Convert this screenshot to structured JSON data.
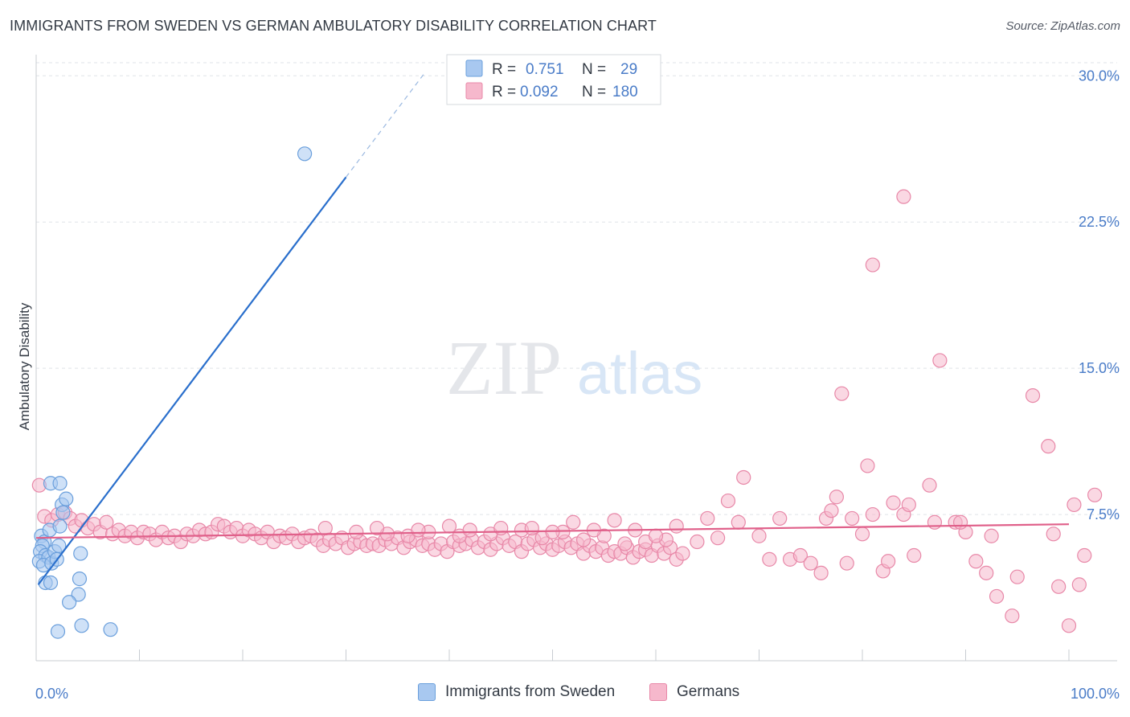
{
  "header": {
    "title": "IMMIGRANTS FROM SWEDEN VS GERMAN AMBULATORY DISABILITY CORRELATION CHART",
    "source": "Source: ZipAtlas.com"
  },
  "watermark": {
    "zip": "ZIP",
    "atlas": "atlas"
  },
  "colors": {
    "blue_fill": "#a8c8f0",
    "blue_stroke": "#6a9fdc",
    "blue_line": "#2a6fcc",
    "pink_fill": "#f6b8cc",
    "pink_stroke": "#e888a8",
    "pink_line": "#e0608a",
    "tick_label": "#4a7cc8",
    "grid": "#dfe3e8"
  },
  "chart_data": {
    "type": "scatter",
    "title": "IMMIGRANTS FROM SWEDEN VS GERMAN AMBULATORY DISABILITY CORRELATION CHART",
    "xlabel": "",
    "ylabel": "Ambulatory Disability",
    "xlim": [
      0,
      100
    ],
    "ylim": [
      0,
      31
    ],
    "x_tick_labels": [
      "0.0%",
      "100.0%"
    ],
    "y_ticks": [
      7.5,
      15.0,
      22.5,
      30.0
    ],
    "y_tick_labels": [
      "7.5%",
      "15.0%",
      "22.5%",
      "30.0%"
    ],
    "grid": true,
    "legend_position": "top-center",
    "series": [
      {
        "name": "Immigrants from Sweden",
        "color": "blue",
        "R": "0.751",
        "N": "29",
        "trend": {
          "x0": 0.2,
          "y0": 3.9,
          "x1": 30,
          "y1": 24.8,
          "dash_to_x": 37.5
        },
        "points": [
          [
            26.0,
            26.0
          ],
          [
            0.5,
            6.4
          ],
          [
            0.8,
            6.1
          ],
          [
            0.6,
            5.9
          ],
          [
            0.4,
            5.6
          ],
          [
            0.9,
            5.4
          ],
          [
            0.3,
            5.1
          ],
          [
            1.2,
            5.3
          ],
          [
            0.7,
            4.9
          ],
          [
            1.5,
            5.0
          ],
          [
            1.8,
            5.6
          ],
          [
            2.0,
            5.2
          ],
          [
            1.3,
            6.7
          ],
          [
            2.3,
            6.9
          ],
          [
            2.2,
            5.9
          ],
          [
            1.4,
            9.1
          ],
          [
            2.3,
            9.1
          ],
          [
            2.5,
            8.0
          ],
          [
            2.9,
            8.3
          ],
          [
            2.6,
            7.6
          ],
          [
            0.9,
            4.0
          ],
          [
            1.4,
            4.0
          ],
          [
            4.3,
            5.5
          ],
          [
            4.2,
            4.2
          ],
          [
            4.1,
            3.4
          ],
          [
            3.2,
            3.0
          ],
          [
            2.1,
            1.5
          ],
          [
            4.4,
            1.8
          ],
          [
            7.2,
            1.6
          ]
        ]
      },
      {
        "name": "Germans",
        "color": "pink",
        "R": "0.092",
        "N": "180",
        "trend": {
          "x0": 0,
          "y0": 6.3,
          "x1": 100,
          "y1": 7.0
        },
        "points": [
          [
            0.3,
            9.0
          ],
          [
            0.8,
            7.4
          ],
          [
            1.5,
            7.2
          ],
          [
            2.1,
            7.5
          ],
          [
            2.8,
            7.6
          ],
          [
            3.3,
            7.3
          ],
          [
            3.8,
            6.9
          ],
          [
            4.4,
            7.2
          ],
          [
            5.0,
            6.8
          ],
          [
            5.6,
            7.0
          ],
          [
            6.2,
            6.6
          ],
          [
            6.8,
            7.1
          ],
          [
            7.4,
            6.5
          ],
          [
            8.0,
            6.7
          ],
          [
            8.6,
            6.4
          ],
          [
            9.2,
            6.6
          ],
          [
            9.8,
            6.3
          ],
          [
            10.4,
            6.6
          ],
          [
            11.0,
            6.5
          ],
          [
            11.6,
            6.2
          ],
          [
            12.2,
            6.6
          ],
          [
            12.8,
            6.3
          ],
          [
            13.4,
            6.4
          ],
          [
            14.0,
            6.1
          ],
          [
            14.6,
            6.5
          ],
          [
            15.2,
            6.4
          ],
          [
            15.8,
            6.7
          ],
          [
            16.4,
            6.5
          ],
          [
            17.0,
            6.6
          ],
          [
            17.6,
            7.0
          ],
          [
            18.2,
            6.9
          ],
          [
            18.8,
            6.6
          ],
          [
            19.4,
            6.8
          ],
          [
            20.0,
            6.4
          ],
          [
            20.6,
            6.7
          ],
          [
            21.2,
            6.5
          ],
          [
            21.8,
            6.3
          ],
          [
            22.4,
            6.6
          ],
          [
            23.0,
            6.1
          ],
          [
            23.6,
            6.4
          ],
          [
            24.2,
            6.3
          ],
          [
            24.8,
            6.5
          ],
          [
            25.4,
            6.1
          ],
          [
            26.0,
            6.3
          ],
          [
            26.6,
            6.4
          ],
          [
            27.2,
            6.2
          ],
          [
            27.8,
            5.9
          ],
          [
            28.4,
            6.2
          ],
          [
            29.0,
            6.0
          ],
          [
            29.6,
            6.3
          ],
          [
            30.2,
            5.8
          ],
          [
            30.8,
            6.0
          ],
          [
            31.4,
            6.1
          ],
          [
            32.0,
            5.9
          ],
          [
            32.6,
            6.0
          ],
          [
            33.2,
            5.9
          ],
          [
            33.8,
            6.2
          ],
          [
            34.4,
            6.0
          ],
          [
            35.0,
            6.3
          ],
          [
            35.6,
            5.8
          ],
          [
            36.2,
            6.1
          ],
          [
            36.8,
            6.2
          ],
          [
            37.4,
            5.9
          ],
          [
            38.0,
            6.0
          ],
          [
            38.6,
            5.7
          ],
          [
            39.2,
            6.0
          ],
          [
            39.8,
            5.6
          ],
          [
            40.4,
            6.1
          ],
          [
            41.0,
            5.9
          ],
          [
            41.6,
            6.0
          ],
          [
            42.2,
            6.2
          ],
          [
            42.8,
            5.8
          ],
          [
            43.4,
            6.1
          ],
          [
            44.0,
            5.7
          ],
          [
            44.6,
            6.0
          ],
          [
            45.2,
            6.3
          ],
          [
            45.8,
            5.9
          ],
          [
            46.4,
            6.1
          ],
          [
            47.0,
            5.6
          ],
          [
            47.6,
            6.0
          ],
          [
            48.2,
            6.2
          ],
          [
            48.8,
            5.8
          ],
          [
            49.4,
            6.0
          ],
          [
            50.0,
            5.7
          ],
          [
            50.6,
            5.9
          ],
          [
            51.2,
            6.1
          ],
          [
            51.8,
            5.8
          ],
          [
            52.4,
            6.0
          ],
          [
            53.0,
            5.5
          ],
          [
            53.6,
            5.9
          ],
          [
            54.2,
            5.6
          ],
          [
            54.8,
            5.8
          ],
          [
            55.4,
            5.4
          ],
          [
            56.0,
            5.6
          ],
          [
            56.6,
            5.5
          ],
          [
            57.2,
            5.8
          ],
          [
            57.8,
            5.3
          ],
          [
            58.4,
            5.6
          ],
          [
            59.0,
            5.7
          ],
          [
            59.6,
            5.4
          ],
          [
            60.2,
            5.9
          ],
          [
            60.8,
            5.5
          ],
          [
            61.4,
            5.8
          ],
          [
            62.0,
            5.2
          ],
          [
            62.6,
            5.5
          ],
          [
            28.0,
            6.8
          ],
          [
            31.0,
            6.6
          ],
          [
            34.0,
            6.5
          ],
          [
            36.0,
            6.4
          ],
          [
            38.0,
            6.6
          ],
          [
            41.0,
            6.4
          ],
          [
            44.0,
            6.5
          ],
          [
            47.0,
            6.7
          ],
          [
            49.0,
            6.3
          ],
          [
            51.0,
            6.6
          ],
          [
            53.0,
            6.2
          ],
          [
            55.0,
            6.4
          ],
          [
            57.0,
            6.0
          ],
          [
            59.0,
            6.1
          ],
          [
            61.0,
            6.2
          ],
          [
            33.0,
            6.8
          ],
          [
            37.0,
            6.7
          ],
          [
            40.0,
            6.9
          ],
          [
            42.0,
            6.7
          ],
          [
            45.0,
            6.8
          ],
          [
            48.0,
            6.8
          ],
          [
            50.0,
            6.6
          ],
          [
            52.0,
            7.1
          ],
          [
            54.0,
            6.7
          ],
          [
            56.0,
            7.2
          ],
          [
            58.0,
            6.7
          ],
          [
            60.0,
            6.4
          ],
          [
            62.0,
            6.9
          ],
          [
            64.0,
            6.1
          ],
          [
            65.0,
            7.3
          ],
          [
            66.0,
            6.3
          ],
          [
            67.0,
            8.2
          ],
          [
            68.0,
            7.1
          ],
          [
            68.5,
            9.4
          ],
          [
            70.0,
            6.4
          ],
          [
            71.0,
            5.2
          ],
          [
            72.0,
            7.3
          ],
          [
            73.0,
            5.2
          ],
          [
            74.0,
            5.4
          ],
          [
            75.0,
            5.0
          ],
          [
            76.0,
            4.5
          ],
          [
            76.5,
            7.3
          ],
          [
            77.0,
            7.7
          ],
          [
            77.5,
            8.4
          ],
          [
            78.5,
            5.0
          ],
          [
            79.0,
            7.3
          ],
          [
            80.0,
            6.5
          ],
          [
            80.5,
            10.0
          ],
          [
            81.0,
            7.5
          ],
          [
            82.0,
            4.6
          ],
          [
            82.5,
            5.1
          ],
          [
            83.0,
            8.1
          ],
          [
            84.0,
            7.5
          ],
          [
            84.5,
            8.0
          ],
          [
            85.0,
            5.4
          ],
          [
            86.5,
            9.0
          ],
          [
            87.0,
            7.1
          ],
          [
            87.5,
            15.4
          ],
          [
            89.0,
            7.1
          ],
          [
            90.0,
            6.6
          ],
          [
            89.5,
            7.1
          ],
          [
            91.0,
            5.1
          ],
          [
            92.0,
            4.5
          ],
          [
            92.5,
            6.4
          ],
          [
            93.0,
            3.3
          ],
          [
            94.5,
            2.3
          ],
          [
            95.0,
            4.3
          ],
          [
            96.5,
            13.6
          ],
          [
            98.0,
            11.0
          ],
          [
            98.5,
            6.5
          ],
          [
            99.0,
            3.8
          ],
          [
            100.0,
            1.8
          ],
          [
            100.5,
            8.0
          ],
          [
            101.0,
            3.9
          ],
          [
            101.5,
            5.4
          ],
          [
            102.5,
            8.5
          ],
          [
            84.0,
            23.8
          ],
          [
            81.0,
            20.3
          ],
          [
            78.0,
            13.7
          ]
        ]
      }
    ]
  }
}
